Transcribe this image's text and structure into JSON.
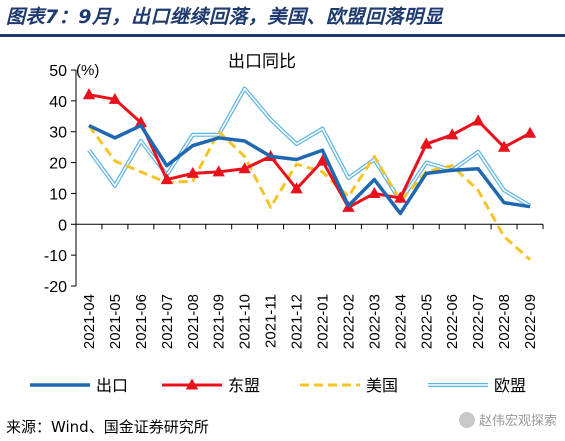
{
  "title": "图表7：9月，出口继续回落，美国、欧盟回落明显",
  "source": "来源：Wind、国金证券研究所",
  "watermark": "赵伟宏观探索",
  "chart_data": {
    "type": "line",
    "title": "出口同比",
    "ylabel": "(%)",
    "ylim": [
      -20,
      50
    ],
    "yticks": [
      -20,
      -10,
      0,
      10,
      20,
      30,
      40,
      50
    ],
    "categories": [
      "2021-04",
      "2021-05",
      "2021-06",
      "2021-07",
      "2021-08",
      "2021-09",
      "2021-10",
      "2021-11",
      "2021-12",
      "2022-01",
      "2022-02",
      "2022-03",
      "2022-04",
      "2022-05",
      "2022-06",
      "2022-07",
      "2022-08",
      "2022-09"
    ],
    "legend_position": "bottom",
    "series": [
      {
        "name": "出口",
        "color": "#1f67b1",
        "style": "solid-thick",
        "values": [
          32,
          28,
          32,
          19,
          25.5,
          28,
          27,
          22,
          21,
          24,
          6,
          14.5,
          3.5,
          16.5,
          17.5,
          18,
          7,
          5.7
        ]
      },
      {
        "name": "东盟",
        "color": "#e8111c",
        "style": "solid-triangle",
        "values": [
          42,
          40.5,
          33,
          14.5,
          16.5,
          17,
          18,
          22,
          11.5,
          20.5,
          5.5,
          10,
          8.5,
          26,
          29,
          33.5,
          25,
          29.5
        ]
      },
      {
        "name": "美国",
        "color": "#f6c427",
        "style": "dashed",
        "values": [
          32,
          20.5,
          17,
          13.5,
          14,
          30,
          22,
          5.5,
          19.5,
          17,
          9,
          22,
          7.5,
          17,
          19,
          11,
          -4,
          -11.5
        ]
      },
      {
        "name": "欧盟",
        "color": "#5bb3e3",
        "style": "double",
        "values": [
          24,
          12.5,
          27,
          16,
          29,
          29,
          44,
          34,
          26,
          31,
          15,
          21,
          7.5,
          20,
          17.5,
          23.5,
          11,
          6
        ]
      }
    ]
  }
}
